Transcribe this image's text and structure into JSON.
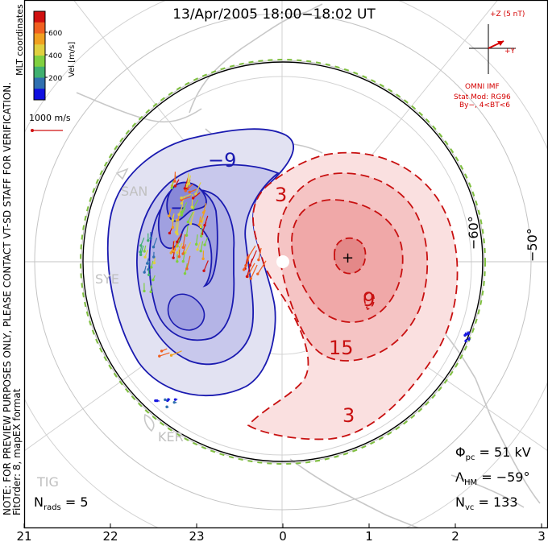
{
  "header": {
    "title": "13/Apr/2005 18:00−18:02 UT"
  },
  "notes": {
    "preview": "NOTE: FOR PREVIEW PURPOSES ONLY, PLEASE CONTACT VT-SD STAFF FOR VERIFICATION.",
    "fitorder": "FitOrder: 8, mapEX format"
  },
  "colorbar": {
    "label": "Vel [m/s]",
    "ticks": [
      "600",
      "400",
      "200"
    ],
    "coords": "MLT coordinates",
    "colors": [
      "#d01010",
      "#f06020",
      "#f0a020",
      "#e0d040",
      "#80d040",
      "#40b070",
      "#3070b0",
      "#1010e0"
    ]
  },
  "scale_vector": {
    "label": "1000 m/s",
    "color": "#d01010"
  },
  "imf": {
    "z_label": "+Z (5 nT)",
    "y_label": "+Y",
    "source": "OMNI IMF",
    "model": "Stat Mod: RG96",
    "condition": "By−, 4<BT<6",
    "color": "#d40000"
  },
  "stations": [
    "SAN",
    "SYE",
    "KER",
    "TIG"
  ],
  "latitude_labels": [
    "−60°",
    "−50°"
  ],
  "stats": {
    "phi_symbol": "Φ",
    "phi_sub": "pc",
    "phi_value": " = 51 kV",
    "lambda_symbol": "Λ",
    "lambda_sub": "HM",
    "lambda_value": " = −59°",
    "nvc_symbol": "N",
    "nvc_sub": "vc",
    "nvc_value": " = 133",
    "nrads_symbol": "N",
    "nrads_sub": "rads",
    "nrads_value": " = 5"
  },
  "chart_data": {
    "type": "polar-convection-map",
    "hemisphere": "south",
    "coordinate_system": "MLT",
    "mlt_ticks": [
      "21",
      "22",
      "23",
      "0",
      "1",
      "2",
      "3"
    ],
    "latitude_circles_deg": [
      -60,
      -50
    ],
    "hm_boundary_deg": -59,
    "potential_contours_kv": [
      -9,
      -3,
      3,
      15
    ],
    "contour_labels": [
      "−9",
      "3",
      "−",
      "+",
      "9",
      "15",
      "3"
    ],
    "potential_min_label": "−",
    "potential_max_label": "+",
    "cross_polar_cap_potential_kv": 51,
    "n_vectors": 133,
    "n_radars": 5,
    "colors": {
      "negative": "#1a1ab0",
      "positive": "#c81010",
      "boundary": "#80c040"
    }
  }
}
